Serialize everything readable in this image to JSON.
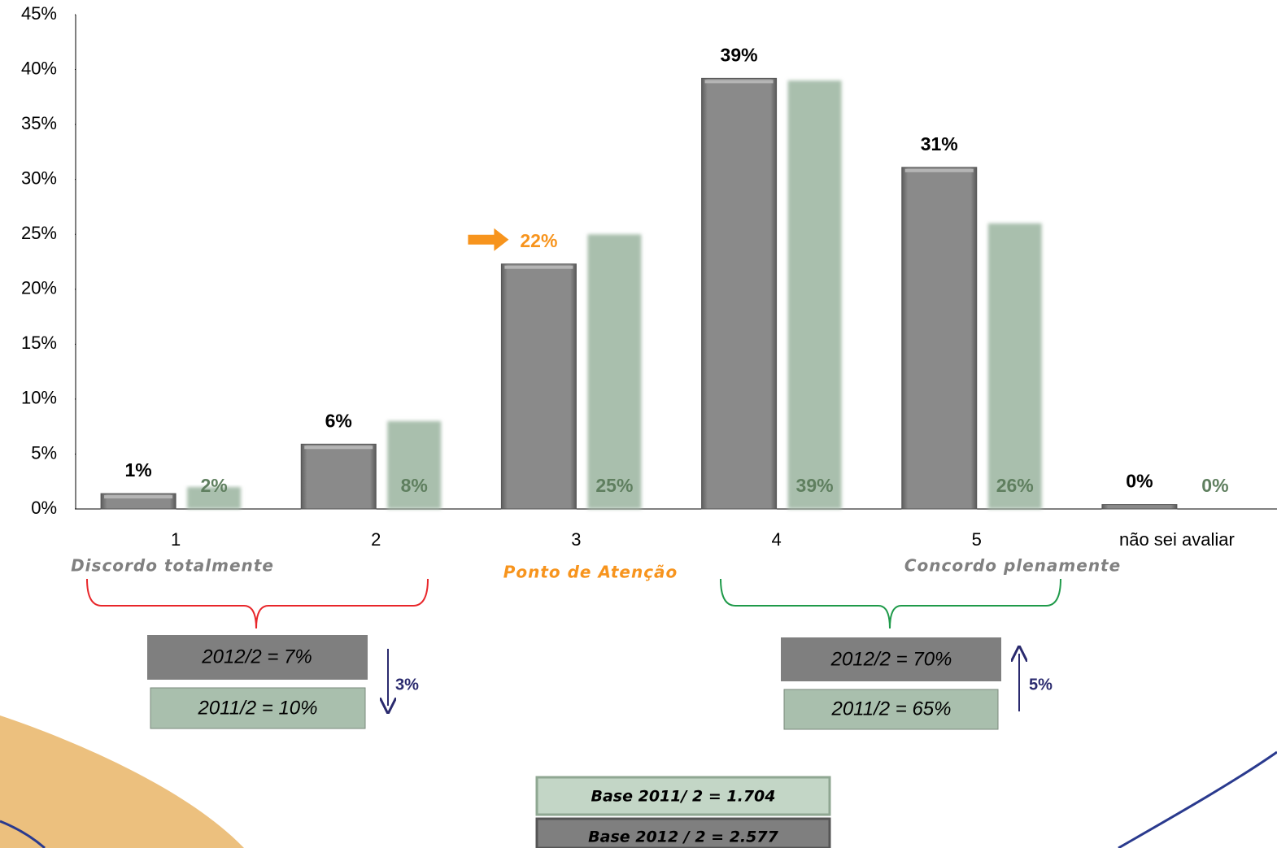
{
  "chart_data": {
    "type": "bar",
    "categories": [
      "1",
      "2",
      "3",
      "4",
      "5",
      "não sei avaliar"
    ],
    "series": [
      {
        "color": "#808080",
        "values": [
          1.4,
          5.9,
          22.3,
          39.2,
          31.1,
          0.4
        ],
        "value_labels": [
          "1%",
          "6%",
          "22%",
          "39%",
          "31%",
          "0%"
        ]
      },
      {
        "color": "#a9bfad",
        "values": [
          2,
          8,
          25,
          39,
          26,
          0
        ],
        "value_labels": [
          "2%",
          "8%",
          "25%",
          "39%",
          "26%",
          "0%"
        ]
      }
    ],
    "ylim": [
      0,
      45
    ],
    "yticks": [
      {
        "value": 0,
        "label": "0%"
      },
      {
        "value": 5,
        "label": "5%"
      },
      {
        "value": 10,
        "label": "10%"
      },
      {
        "value": 15,
        "label": "15%"
      },
      {
        "value": 20,
        "label": "20%"
      },
      {
        "value": 25,
        "label": "25%"
      },
      {
        "value": 30,
        "label": "30%"
      },
      {
        "value": 35,
        "label": "35%"
      },
      {
        "value": 40,
        "label": "40%"
      },
      {
        "value": 45,
        "label": "45%"
      }
    ],
    "grid": false,
    "annotations": {
      "scale": [
        "Discordo totalmente",
        "Ponto de Atenção",
        "Concordo plenamente"
      ],
      "summary_left": [
        "2012/2 = 7%",
        "2011/2 = 10%",
        "3%"
      ],
      "summary_right": [
        "2012/2 = 70%",
        "2011/2 = 65%",
        "5%"
      ],
      "base": [
        "Base 2011/ 2 = 1.704",
        "Base 2012 / 2 = 2.577"
      ]
    }
  }
}
